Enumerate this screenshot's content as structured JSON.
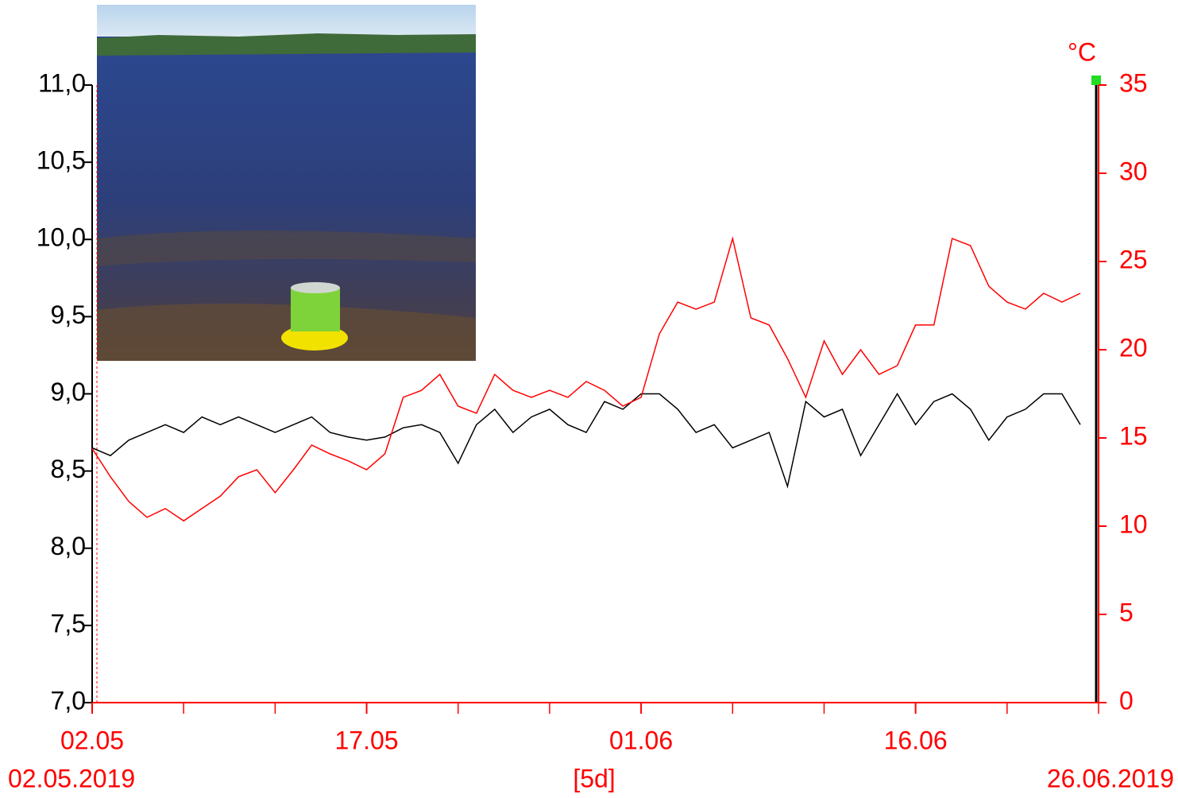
{
  "chart_data": {
    "type": "line",
    "unit_label": "°C",
    "x": [
      "2019-05-02",
      "2019-05-03",
      "2019-05-04",
      "2019-05-05",
      "2019-05-06",
      "2019-05-07",
      "2019-05-08",
      "2019-05-09",
      "2019-05-10",
      "2019-05-11",
      "2019-05-12",
      "2019-05-13",
      "2019-05-14",
      "2019-05-15",
      "2019-05-16",
      "2019-05-17",
      "2019-05-18",
      "2019-05-19",
      "2019-05-20",
      "2019-05-21",
      "2019-05-22",
      "2019-05-23",
      "2019-05-24",
      "2019-05-25",
      "2019-05-26",
      "2019-05-27",
      "2019-05-28",
      "2019-05-29",
      "2019-05-30",
      "2019-05-31",
      "2019-06-01",
      "2019-06-02",
      "2019-06-03",
      "2019-06-04",
      "2019-06-05",
      "2019-06-06",
      "2019-06-07",
      "2019-06-08",
      "2019-06-09",
      "2019-06-10",
      "2019-06-11",
      "2019-06-12",
      "2019-06-13",
      "2019-06-14",
      "2019-06-15",
      "2019-06-16",
      "2019-06-17",
      "2019-06-18",
      "2019-06-19",
      "2019-06-20",
      "2019-06-21",
      "2019-06-22",
      "2019-06-23",
      "2019-06-24",
      "2019-06-25"
    ],
    "series": [
      {
        "color": "#000000",
        "axis": "y",
        "values": [
          8.65,
          8.6,
          8.7,
          8.75,
          8.8,
          8.75,
          8.85,
          8.8,
          8.85,
          8.8,
          8.75,
          8.8,
          8.85,
          8.75,
          8.72,
          8.7,
          8.72,
          8.78,
          8.8,
          8.75,
          8.55,
          8.8,
          8.9,
          8.75,
          8.85,
          8.9,
          8.8,
          8.75,
          8.95,
          8.9,
          9.0,
          9.0,
          8.9,
          8.75,
          8.8,
          8.65,
          8.7,
          8.75,
          8.4,
          8.95,
          8.85,
          8.9,
          8.6,
          8.8,
          9.0,
          8.8,
          8.95,
          9.0,
          8.9,
          8.7,
          8.85,
          8.9,
          9.0,
          9.0,
          8.8
        ]
      },
      {
        "color": "#ff0000",
        "axis": "y2",
        "values": [
          14.4,
          12.8,
          11.4,
          10.5,
          11,
          10.3,
          11,
          11.7,
          12.8,
          13.2,
          11.9,
          13.2,
          14.6,
          14.1,
          13.7,
          13.2,
          14.1,
          17.3,
          17.7,
          18.6,
          16.8,
          16.4,
          18.6,
          17.7,
          17.3,
          17.7,
          17.3,
          18.2,
          17.7,
          16.8,
          17.3,
          20.9,
          22.7,
          22.3,
          22.7,
          26.3,
          21.8,
          21.4,
          19.5,
          17.3,
          20.5,
          18.6,
          20,
          18.6,
          19.1,
          21.4,
          21.4,
          26.3,
          25.9,
          23.6,
          22.7,
          22.3,
          23.2,
          22.7,
          23.2
        ]
      }
    ],
    "xlim": [
      "2019-05-02",
      "2019-06-26"
    ],
    "xticks": [
      {
        "value": "2019-05-02",
        "label": "02.05"
      },
      {
        "value": "2019-05-17",
        "label": "17.05"
      },
      {
        "value": "2019-06-01",
        "label": "01.06"
      },
      {
        "value": "2019-06-16",
        "label": "16.06"
      }
    ],
    "x_minor_ticks": [
      "2019-05-07",
      "2019-05-12",
      "2019-05-22",
      "2019-05-27",
      "2019-06-06",
      "2019-06-11",
      "2019-06-21",
      "2019-06-26"
    ],
    "start_label": "02.05.2019",
    "interval_label": "[5d]",
    "end_label": "26.06.2019",
    "ylim": [
      7,
      11
    ],
    "yticks": [
      {
        "value": 7,
        "label": "7,0"
      },
      {
        "value": 7.5,
        "label": "7,5"
      },
      {
        "value": 8,
        "label": "8,0"
      },
      {
        "value": 8.5,
        "label": "8,5"
      },
      {
        "value": 9,
        "label": "9,0"
      },
      {
        "value": 9.5,
        "label": "9,5"
      },
      {
        "value": 10,
        "label": "10,0"
      },
      {
        "value": 10.5,
        "label": "10,5"
      },
      {
        "value": 11,
        "label": "11,0"
      }
    ],
    "y2lim": [
      0,
      35
    ],
    "y2ticks": [
      0,
      5,
      10,
      15,
      20,
      25,
      30,
      35
    ],
    "y_color": "#000000",
    "y2_color": "#ff0000",
    "x_color": "#ff0000"
  }
}
